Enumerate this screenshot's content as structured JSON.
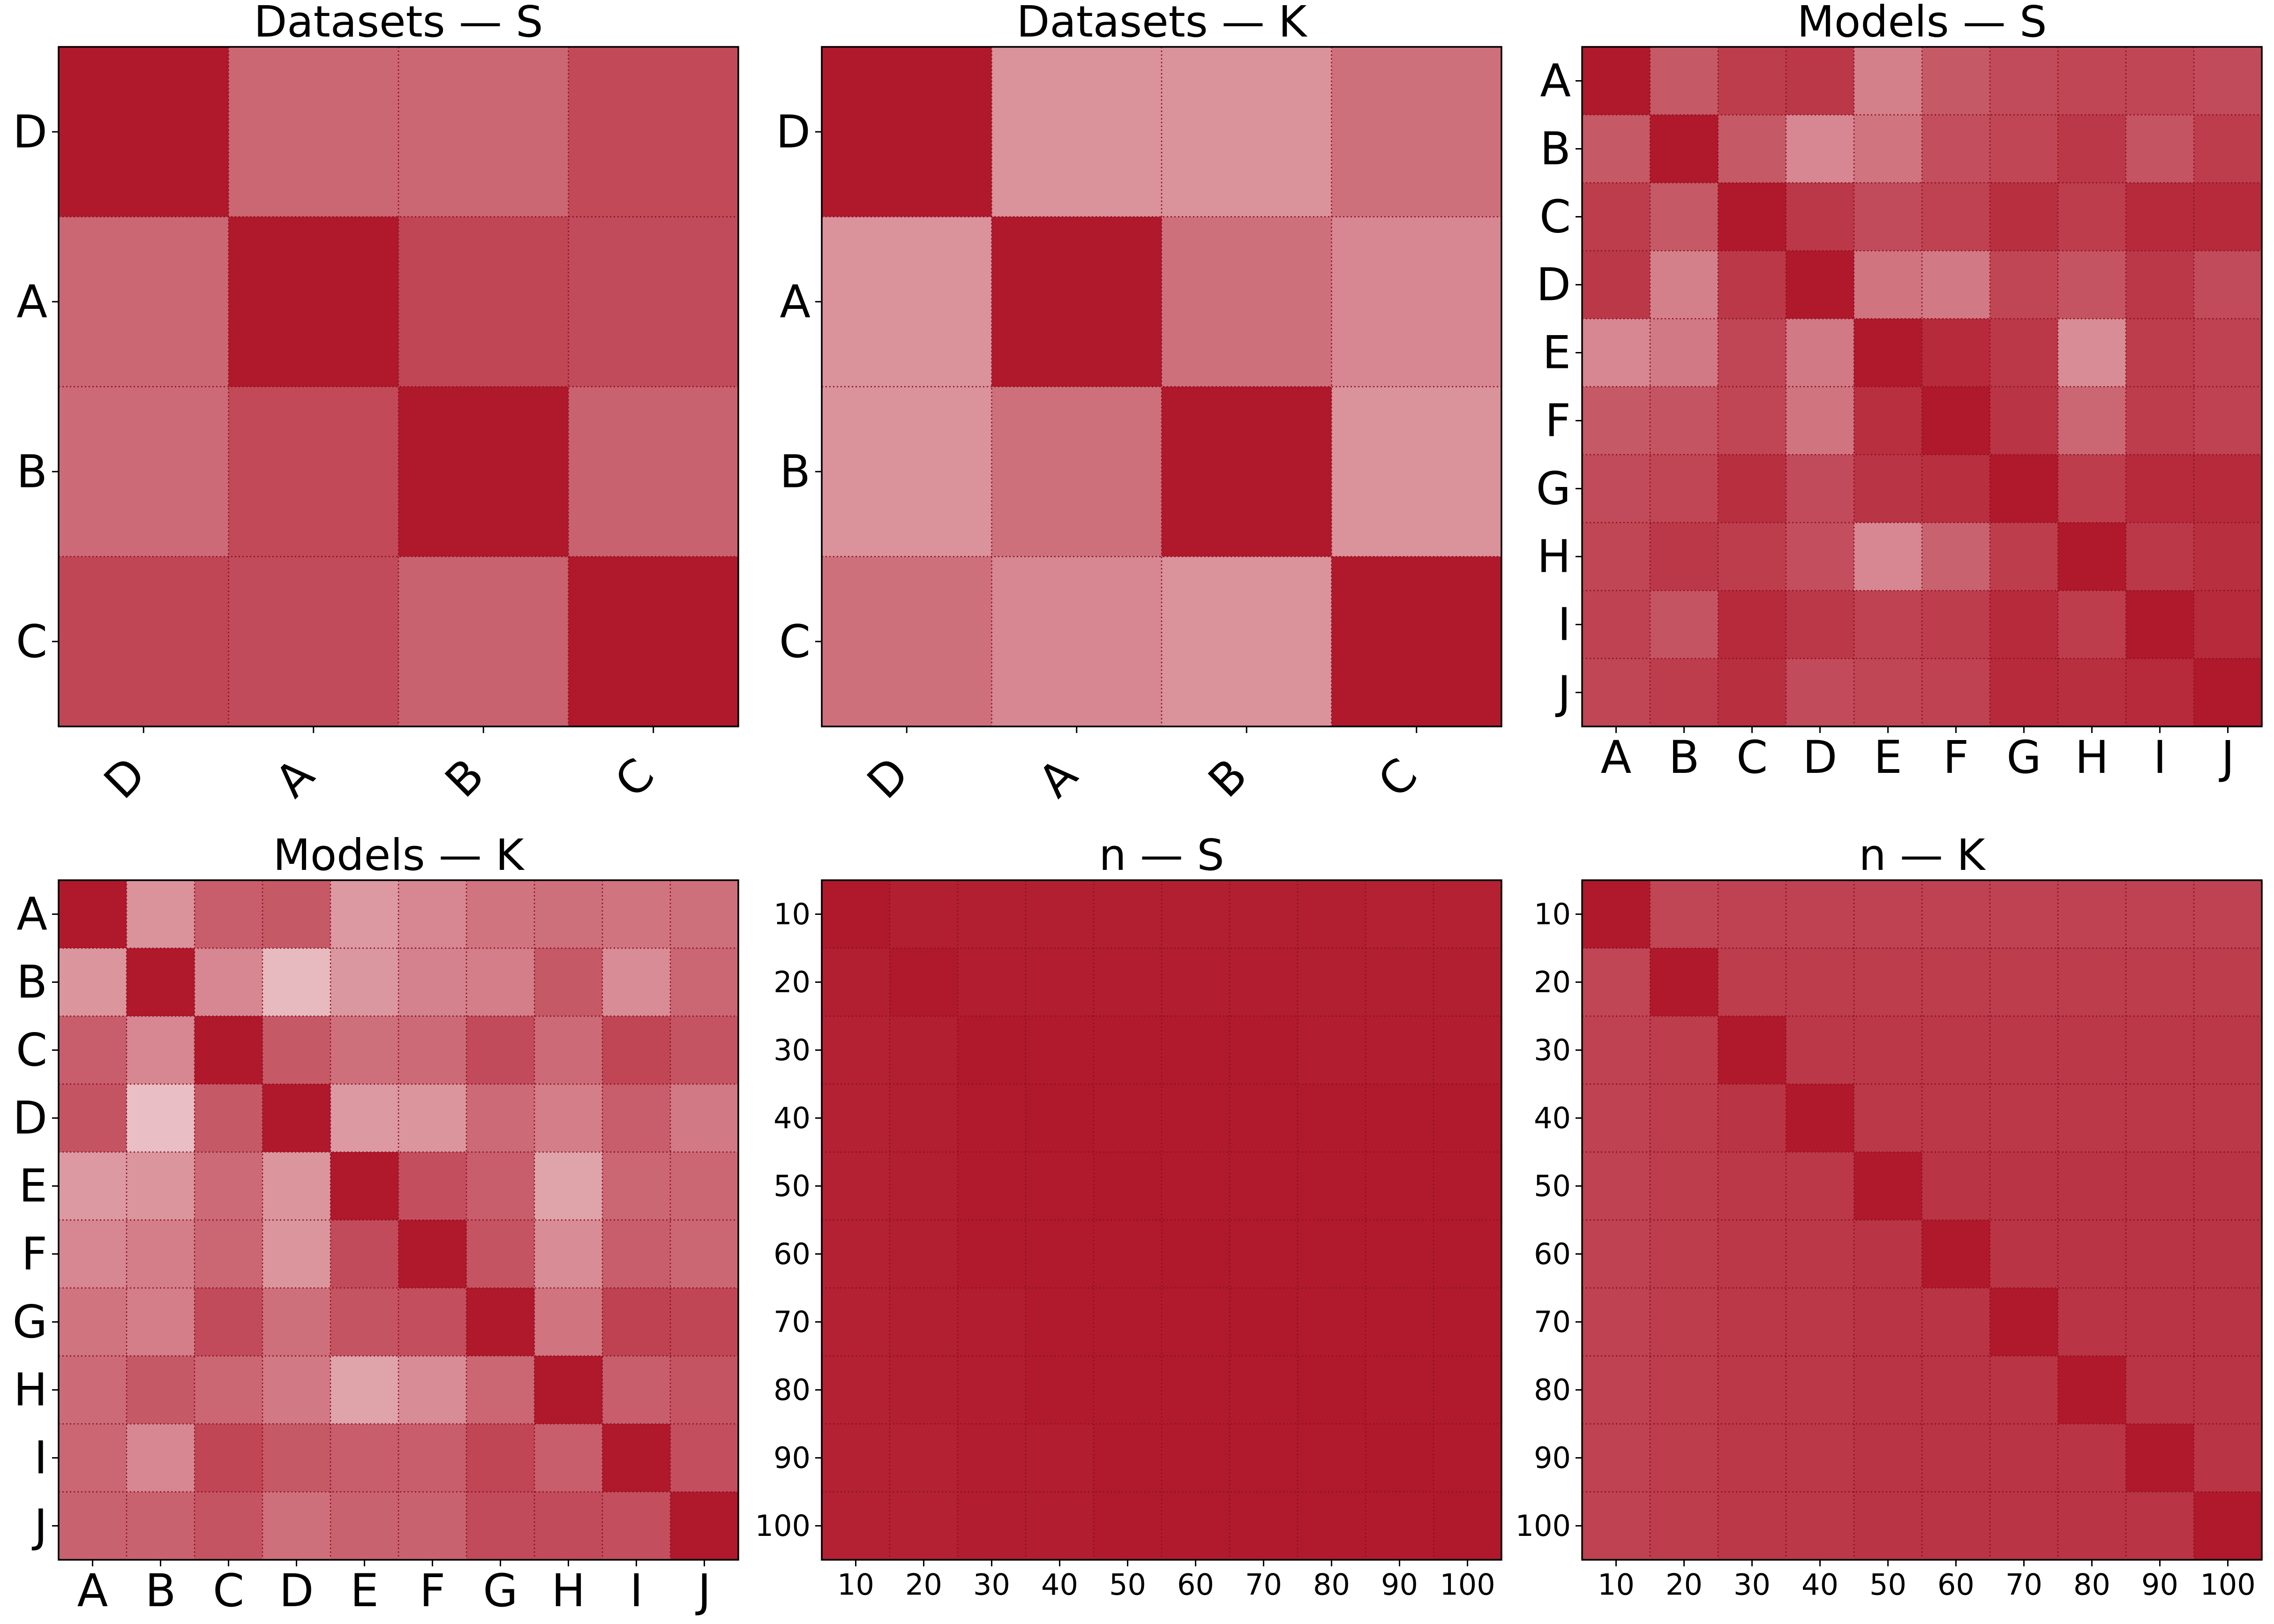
{
  "chart_data": [
    {
      "type": "heatmap",
      "title": "Datasets — S",
      "rows": [
        "D",
        "A",
        "B",
        "C"
      ],
      "cols": [
        "D",
        "A",
        "B",
        "C"
      ],
      "rotated_xticks": true,
      "vmin": 0,
      "vmax": 1,
      "values": [
        [
          1.0,
          0.66,
          0.66,
          0.79
        ],
        [
          0.66,
          1.0,
          0.8,
          0.78
        ],
        [
          0.64,
          0.79,
          1.0,
          0.68
        ],
        [
          0.8,
          0.78,
          0.68,
          1.0
        ]
      ]
    },
    {
      "type": "heatmap",
      "title": "Datasets — K",
      "rows": [
        "D",
        "A",
        "B",
        "C"
      ],
      "cols": [
        "D",
        "A",
        "B",
        "C"
      ],
      "rotated_xticks": true,
      "vmin": 0,
      "vmax": 1,
      "values": [
        [
          1.0,
          0.47,
          0.47,
          0.62
        ],
        [
          0.47,
          1.0,
          0.62,
          0.52
        ],
        [
          0.47,
          0.62,
          1.0,
          0.47
        ],
        [
          0.62,
          0.52,
          0.47,
          1.0
        ]
      ]
    },
    {
      "type": "heatmap",
      "title": "Models — S",
      "rows": [
        "A",
        "B",
        "C",
        "D",
        "E",
        "F",
        "G",
        "H",
        "I",
        "J"
      ],
      "cols": [
        "A",
        "B",
        "C",
        "D",
        "E",
        "F",
        "G",
        "H",
        "I",
        "J"
      ],
      "rotated_xticks": false,
      "vmin": 0,
      "vmax": 1,
      "values": [
        [
          1.0,
          0.72,
          0.84,
          0.86,
          0.55,
          0.72,
          0.78,
          0.8,
          0.8,
          0.78
        ],
        [
          0.72,
          1.0,
          0.72,
          0.52,
          0.6,
          0.76,
          0.8,
          0.86,
          0.74,
          0.84
        ],
        [
          0.84,
          0.72,
          1.0,
          0.86,
          0.78,
          0.82,
          0.9,
          0.84,
          0.92,
          0.92
        ],
        [
          0.86,
          0.55,
          0.86,
          1.0,
          0.6,
          0.58,
          0.8,
          0.74,
          0.86,
          0.78
        ],
        [
          0.52,
          0.58,
          0.8,
          0.58,
          1.0,
          0.92,
          0.86,
          0.5,
          0.84,
          0.82
        ],
        [
          0.72,
          0.74,
          0.8,
          0.6,
          0.9,
          1.0,
          0.88,
          0.66,
          0.84,
          0.82
        ],
        [
          0.78,
          0.8,
          0.9,
          0.78,
          0.88,
          0.9,
          1.0,
          0.84,
          0.92,
          0.92
        ],
        [
          0.8,
          0.86,
          0.84,
          0.76,
          0.52,
          0.68,
          0.84,
          1.0,
          0.86,
          0.9
        ],
        [
          0.82,
          0.74,
          0.92,
          0.86,
          0.82,
          0.84,
          0.92,
          0.84,
          1.0,
          0.92
        ],
        [
          0.8,
          0.84,
          0.9,
          0.78,
          0.8,
          0.82,
          0.92,
          0.9,
          0.92,
          1.0
        ]
      ]
    },
    {
      "type": "heatmap",
      "title": "Models — K",
      "rows": [
        "A",
        "B",
        "C",
        "D",
        "E",
        "F",
        "G",
        "H",
        "I",
        "J"
      ],
      "cols": [
        "A",
        "B",
        "C",
        "D",
        "E",
        "F",
        "G",
        "H",
        "I",
        "J"
      ],
      "rotated_xticks": false,
      "vmin": 0,
      "vmax": 1,
      "values": [
        [
          1.0,
          0.47,
          0.7,
          0.72,
          0.44,
          0.52,
          0.6,
          0.62,
          0.6,
          0.62
        ],
        [
          0.46,
          1.0,
          0.52,
          0.3,
          0.45,
          0.54,
          0.56,
          0.72,
          0.5,
          0.66
        ],
        [
          0.7,
          0.52,
          1.0,
          0.72,
          0.62,
          0.64,
          0.78,
          0.64,
          0.8,
          0.74
        ],
        [
          0.74,
          0.28,
          0.72,
          1.0,
          0.44,
          0.46,
          0.64,
          0.56,
          0.7,
          0.58
        ],
        [
          0.44,
          0.46,
          0.64,
          0.46,
          1.0,
          0.76,
          0.7,
          0.4,
          0.66,
          0.66
        ],
        [
          0.52,
          0.56,
          0.66,
          0.46,
          0.78,
          1.0,
          0.74,
          0.5,
          0.7,
          0.66
        ],
        [
          0.6,
          0.56,
          0.78,
          0.62,
          0.74,
          0.76,
          1.0,
          0.6,
          0.82,
          0.8
        ],
        [
          0.64,
          0.72,
          0.66,
          0.58,
          0.4,
          0.5,
          0.66,
          1.0,
          0.7,
          0.74
        ],
        [
          0.66,
          0.52,
          0.8,
          0.72,
          0.7,
          0.7,
          0.8,
          0.7,
          1.0,
          0.76
        ],
        [
          0.68,
          0.68,
          0.74,
          0.62,
          0.68,
          0.68,
          0.78,
          0.78,
          0.76,
          1.0
        ]
      ]
    },
    {
      "type": "heatmap",
      "title": "n — S",
      "rows": [
        "10",
        "20",
        "30",
        "40",
        "50",
        "60",
        "70",
        "80",
        "90",
        "100"
      ],
      "cols": [
        "10",
        "20",
        "30",
        "40",
        "50",
        "60",
        "70",
        "80",
        "90",
        "100"
      ],
      "rotated_xticks": false,
      "vmin": 0,
      "vmax": 1,
      "values": [
        [
          1.0,
          0.97,
          0.97,
          0.97,
          0.97,
          0.97,
          0.97,
          0.97,
          0.96,
          0.96
        ],
        [
          0.97,
          1.0,
          0.98,
          0.98,
          0.98,
          0.98,
          0.98,
          0.97,
          0.97,
          0.97
        ],
        [
          0.96,
          0.97,
          1.0,
          0.99,
          0.99,
          0.99,
          0.99,
          0.98,
          0.98,
          0.98
        ],
        [
          0.96,
          0.97,
          0.99,
          1.0,
          0.99,
          0.99,
          0.99,
          0.99,
          0.99,
          0.99
        ],
        [
          0.96,
          0.97,
          0.99,
          0.99,
          1.0,
          0.99,
          0.99,
          0.99,
          0.99,
          0.99
        ],
        [
          0.96,
          0.97,
          0.99,
          0.99,
          0.99,
          1.0,
          0.99,
          0.99,
          0.99,
          0.99
        ],
        [
          0.96,
          0.97,
          0.98,
          0.99,
          0.99,
          0.99,
          1.0,
          0.99,
          0.99,
          0.99
        ],
        [
          0.96,
          0.97,
          0.98,
          0.99,
          0.99,
          0.99,
          0.99,
          1.0,
          0.99,
          0.99
        ],
        [
          0.96,
          0.96,
          0.98,
          0.98,
          0.99,
          0.99,
          0.99,
          0.99,
          1.0,
          0.99
        ],
        [
          0.96,
          0.96,
          0.98,
          0.98,
          0.99,
          0.99,
          0.99,
          0.99,
          0.99,
          1.0
        ]
      ]
    },
    {
      "type": "heatmap",
      "title": "n — K",
      "rows": [
        "10",
        "20",
        "30",
        "40",
        "50",
        "60",
        "70",
        "80",
        "90",
        "100"
      ],
      "cols": [
        "10",
        "20",
        "30",
        "40",
        "50",
        "60",
        "70",
        "80",
        "90",
        "100"
      ],
      "rotated_xticks": false,
      "vmin": 0,
      "vmax": 1,
      "values": [
        [
          1.0,
          0.8,
          0.82,
          0.82,
          0.82,
          0.82,
          0.82,
          0.82,
          0.82,
          0.82
        ],
        [
          0.8,
          1.0,
          0.84,
          0.84,
          0.84,
          0.84,
          0.84,
          0.84,
          0.84,
          0.84
        ],
        [
          0.82,
          0.84,
          1.0,
          0.86,
          0.86,
          0.86,
          0.86,
          0.86,
          0.86,
          0.86
        ],
        [
          0.82,
          0.84,
          0.88,
          1.0,
          0.86,
          0.86,
          0.86,
          0.86,
          0.86,
          0.86
        ],
        [
          0.82,
          0.84,
          0.86,
          0.86,
          1.0,
          0.88,
          0.88,
          0.88,
          0.88,
          0.88
        ],
        [
          0.82,
          0.84,
          0.86,
          0.86,
          0.88,
          1.0,
          0.88,
          0.88,
          0.88,
          0.88
        ],
        [
          0.82,
          0.84,
          0.86,
          0.86,
          0.88,
          0.88,
          1.0,
          0.88,
          0.88,
          0.88
        ],
        [
          0.82,
          0.84,
          0.86,
          0.86,
          0.88,
          0.88,
          0.88,
          1.0,
          0.88,
          0.88
        ],
        [
          0.82,
          0.84,
          0.86,
          0.86,
          0.88,
          0.88,
          0.88,
          0.88,
          1.0,
          0.88
        ],
        [
          0.82,
          0.84,
          0.86,
          0.86,
          0.88,
          0.88,
          0.88,
          0.88,
          0.88,
          1.0
        ]
      ]
    }
  ],
  "colors": {
    "low": "#ffffff",
    "high": "#b0182b",
    "grid": "#8a1020",
    "frame": "#000000"
  }
}
